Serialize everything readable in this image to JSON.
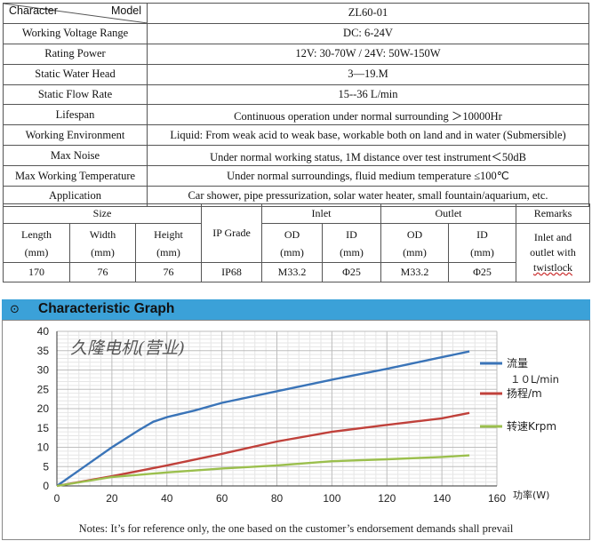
{
  "spec": {
    "header_left": "Character",
    "header_right": "Model",
    "model": "ZL60-01",
    "rows": [
      {
        "label": "Working Voltage Range",
        "value": "DC:    6-24V"
      },
      {
        "label": "Rating Power",
        "value": "12V:    30-70W    /    24V:    50W-150W"
      },
      {
        "label": "Static Water Head",
        "value": "3—19.M"
      },
      {
        "label": "Static Flow Rate",
        "value": "15--36 L/min"
      },
      {
        "label": "Lifespan",
        "value": "Continuous operation under normal surrounding  ＞10000Hr"
      },
      {
        "label": "Working Environment",
        "value": "Liquid: From weak acid to weak base, workable both on land and in water (Submersible)"
      },
      {
        "label": "Max Noise",
        "value": "Under normal working status, 1M distance over test instrument＜50dB"
      },
      {
        "label": "Max Working Temperature",
        "value": "Under normal surroundings, fluid medium temperature ≤100℃"
      },
      {
        "label": "Application",
        "value": "Car shower, pipe pressurization, solar water heater, small fountain/aquarium, etc."
      }
    ]
  },
  "dims": {
    "size": "Size",
    "ip": "IP Grade",
    "inlet": "Inlet",
    "outlet": "Outlet",
    "remarks": "Remarks",
    "length": "Length",
    "width": "Width",
    "height": "Height",
    "od": "OD",
    "id": "ID",
    "unit": "(mm)",
    "v_length": "170",
    "v_width": "76",
    "v_height": "76",
    "v_ip": "IP68",
    "v_inlet_od": "M33.2",
    "v_inlet_id": "Φ25",
    "v_outlet_od": "M33.2",
    "v_outlet_id": "Φ25",
    "remark_1": "Inlet and",
    "remark_2": "outlet with",
    "remark_3": "twistlock"
  },
  "section": {
    "icon": "target-circle-icon",
    "title": "Characteristic Graph"
  },
  "chart_data": {
    "type": "line",
    "watermark": "久隆电机(营业)",
    "xlabel": "功率(W)",
    "ylabel": "",
    "xlim": [
      0,
      160
    ],
    "ylim": [
      0,
      40
    ],
    "x_ticks": [
      0,
      20,
      40,
      60,
      80,
      100,
      120,
      140,
      160
    ],
    "y_ticks": [
      0,
      5,
      10,
      15,
      20,
      25,
      30,
      35,
      40
    ],
    "grid": true,
    "legend_position": "right",
    "series": [
      {
        "name": "流量",
        "name_line2": "１０L/min",
        "color": "#3a74b8",
        "x": [
          0,
          10,
          20,
          30,
          35,
          40,
          50,
          60,
          80,
          100,
          120,
          140,
          150
        ],
        "y": [
          0,
          5,
          10,
          14.5,
          16.6,
          17.8,
          19.5,
          21.5,
          24.5,
          27.5,
          30.3,
          33.3,
          34.8
        ]
      },
      {
        "name": "扬程/m",
        "color": "#c0413b",
        "x": [
          0,
          20,
          40,
          60,
          80,
          100,
          120,
          140,
          150
        ],
        "y": [
          0,
          2.5,
          5.3,
          8.3,
          11.5,
          14,
          15.8,
          17.5,
          18.9
        ]
      },
      {
        "name": "转速Krpm",
        "color": "#9bbf4d",
        "x": [
          0,
          20,
          40,
          60,
          80,
          100,
          120,
          140,
          150
        ],
        "y": [
          0,
          2.3,
          3.5,
          4.5,
          5.3,
          6.4,
          6.9,
          7.5,
          7.9
        ]
      }
    ],
    "note": "Notes:  It’s for reference only, the one based on the customer’s endorsement demands shall prevail"
  }
}
